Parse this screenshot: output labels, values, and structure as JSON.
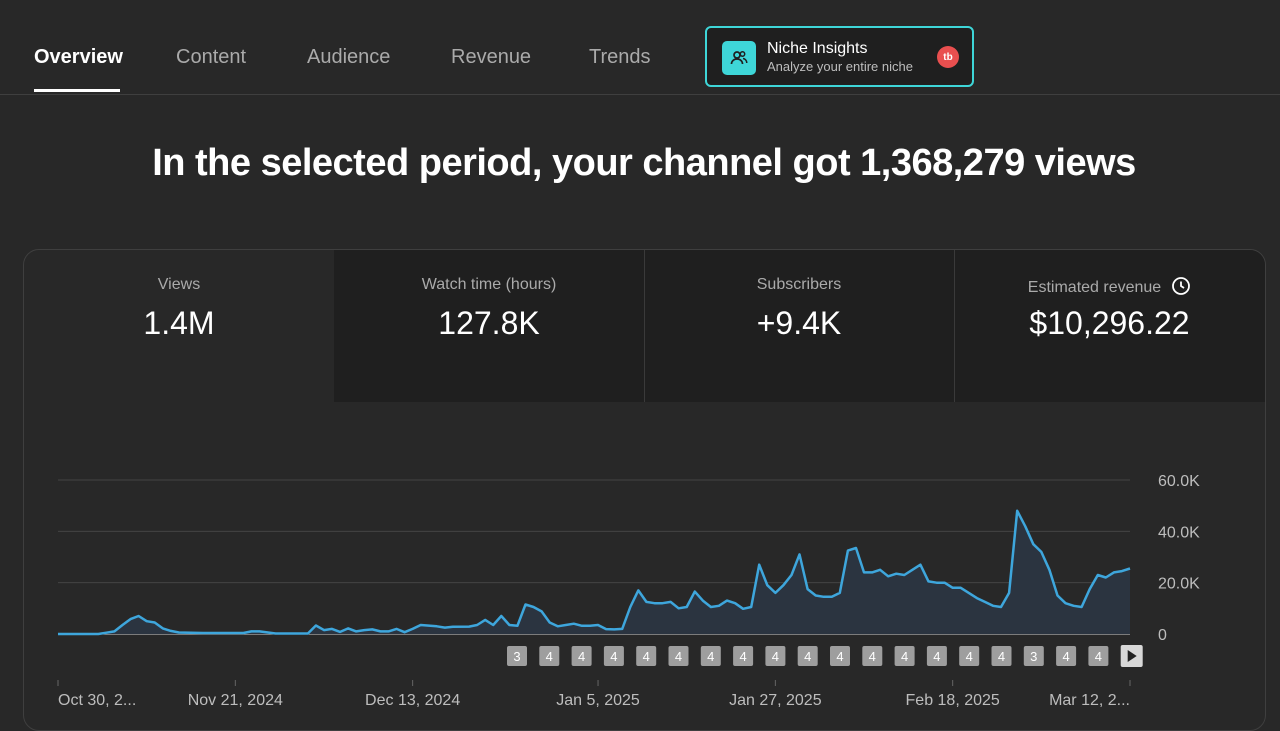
{
  "tabs": [
    {
      "label": "Overview",
      "active": true
    },
    {
      "label": "Content"
    },
    {
      "label": "Audience"
    },
    {
      "label": "Revenue"
    },
    {
      "label": "Trends"
    }
  ],
  "niche": {
    "title": "Niche Insights",
    "subtitle": "Analyze your entire niche",
    "badge": "tb",
    "accent": "#3ed6d8",
    "badge_color": "#e94f4f",
    "icon": "users-icon"
  },
  "headline": "In the selected period, your channel got 1,368,279 views",
  "metrics": [
    {
      "label": "Views",
      "value": "1.4M"
    },
    {
      "label": "Watch time (hours)",
      "value": "127.8K"
    },
    {
      "label": "Subscribers",
      "value": "+9.4K"
    },
    {
      "label": "Estimated revenue",
      "value": "$10,296.22",
      "icon": "clock-icon"
    }
  ],
  "chart_data": {
    "type": "area",
    "y_ticks": [
      "60.0K",
      "40.0K",
      "20.0K",
      "0"
    ],
    "ylim": [
      0,
      60000
    ],
    "x_ticks": [
      "Oct 30, 2...",
      "Nov 21, 2024",
      "Dec 13, 2024",
      "Jan 5, 2025",
      "Jan 27, 2025",
      "Feb 18, 2025",
      "Mar 12, 2..."
    ],
    "x_tick_days": [
      0,
      22,
      44,
      67,
      89,
      111,
      133
    ],
    "xlim_days": [
      0,
      133
    ],
    "line_color": "#3ea6dc",
    "fill_color": "#2b3440",
    "grid": true,
    "series": [
      {
        "values": [
          [
            0,
            0
          ],
          [
            2,
            0
          ],
          [
            5,
            0
          ],
          [
            6,
            500
          ],
          [
            7,
            1000
          ],
          [
            8,
            3500
          ],
          [
            9,
            5800
          ],
          [
            10,
            7000
          ],
          [
            11,
            5000
          ],
          [
            12,
            4500
          ],
          [
            13,
            2200
          ],
          [
            14,
            1200
          ],
          [
            15,
            600
          ],
          [
            18,
            400
          ],
          [
            23,
            400
          ],
          [
            24,
            1000
          ],
          [
            25,
            1000
          ],
          [
            27,
            200
          ],
          [
            31,
            200
          ],
          [
            32,
            3300
          ],
          [
            33,
            1500
          ],
          [
            34,
            2000
          ],
          [
            35,
            800
          ],
          [
            36,
            2200
          ],
          [
            37,
            1000
          ],
          [
            38,
            1500
          ],
          [
            39,
            1800
          ],
          [
            40,
            1000
          ],
          [
            41,
            1000
          ],
          [
            42,
            2000
          ],
          [
            43,
            700
          ],
          [
            44,
            2000
          ],
          [
            45,
            3500
          ],
          [
            47,
            3000
          ],
          [
            48,
            2500
          ],
          [
            49,
            2800
          ],
          [
            51,
            2900
          ],
          [
            52,
            3500
          ],
          [
            53,
            5500
          ],
          [
            54,
            3500
          ],
          [
            55,
            7000
          ],
          [
            56,
            3500
          ],
          [
            57,
            3200
          ],
          [
            58,
            11500
          ],
          [
            59,
            10500
          ],
          [
            60,
            8800
          ],
          [
            61,
            4500
          ],
          [
            62,
            3000
          ],
          [
            63,
            3500
          ],
          [
            64,
            4000
          ],
          [
            65,
            3200
          ],
          [
            66,
            3200
          ],
          [
            67,
            3500
          ],
          [
            68,
            1900
          ],
          [
            69,
            1800
          ],
          [
            70,
            2000
          ],
          [
            71,
            10500
          ],
          [
            72,
            17000
          ],
          [
            73,
            12500
          ],
          [
            74,
            12000
          ],
          [
            75,
            12000
          ],
          [
            76,
            12500
          ],
          [
            77,
            10000
          ],
          [
            78,
            10500
          ],
          [
            79,
            16500
          ],
          [
            80,
            13000
          ],
          [
            81,
            10500
          ],
          [
            82,
            11000
          ],
          [
            83,
            13000
          ],
          [
            84,
            12000
          ],
          [
            85,
            9800
          ],
          [
            86,
            10500
          ],
          [
            87,
            27000
          ],
          [
            88,
            19000
          ],
          [
            89,
            16000
          ],
          [
            90,
            19000
          ],
          [
            91,
            23000
          ],
          [
            92,
            31000
          ],
          [
            93,
            17500
          ],
          [
            94,
            15000
          ],
          [
            95,
            14500
          ],
          [
            96,
            14500
          ],
          [
            97,
            16000
          ],
          [
            98,
            32500
          ],
          [
            99,
            33500
          ],
          [
            100,
            24000
          ],
          [
            101,
            24000
          ],
          [
            102,
            25000
          ],
          [
            103,
            22500
          ],
          [
            104,
            23500
          ],
          [
            105,
            23000
          ],
          [
            106,
            25000
          ],
          [
            107,
            27000
          ],
          [
            108,
            20500
          ],
          [
            109,
            20000
          ],
          [
            110,
            20000
          ],
          [
            111,
            18000
          ],
          [
            112,
            18000
          ],
          [
            113,
            16000
          ],
          [
            114,
            14000
          ],
          [
            115,
            12500
          ],
          [
            116,
            11000
          ],
          [
            117,
            10500
          ],
          [
            118,
            16000
          ],
          [
            119,
            48000
          ],
          [
            120,
            42000
          ],
          [
            121,
            35000
          ],
          [
            122,
            32000
          ],
          [
            123,
            25000
          ],
          [
            124,
            15000
          ],
          [
            125,
            12000
          ],
          [
            126,
            11000
          ],
          [
            127,
            10500
          ],
          [
            128,
            17500
          ],
          [
            129,
            23000
          ],
          [
            130,
            22000
          ],
          [
            131,
            24000
          ],
          [
            132,
            24500
          ],
          [
            133,
            25500
          ]
        ]
      }
    ],
    "markers": [
      {
        "label": "3",
        "highlight": false
      },
      {
        "label": "4",
        "highlight": false
      },
      {
        "label": "4",
        "highlight": false
      },
      {
        "label": "4",
        "highlight": false
      },
      {
        "label": "4",
        "highlight": false
      },
      {
        "label": "4",
        "highlight": false
      },
      {
        "label": "4",
        "highlight": false
      },
      {
        "label": "4",
        "highlight": false
      },
      {
        "label": "4",
        "highlight": false
      },
      {
        "label": "4",
        "highlight": false
      },
      {
        "label": "4",
        "highlight": false
      },
      {
        "label": "4",
        "highlight": false
      },
      {
        "label": "4",
        "highlight": false
      },
      {
        "label": "4",
        "highlight": false
      },
      {
        "label": "4",
        "highlight": false
      },
      {
        "label": "4",
        "highlight": false
      },
      {
        "label": "3",
        "highlight": false
      },
      {
        "label": "4",
        "highlight": false
      },
      {
        "label": "4",
        "highlight": false
      }
    ]
  }
}
